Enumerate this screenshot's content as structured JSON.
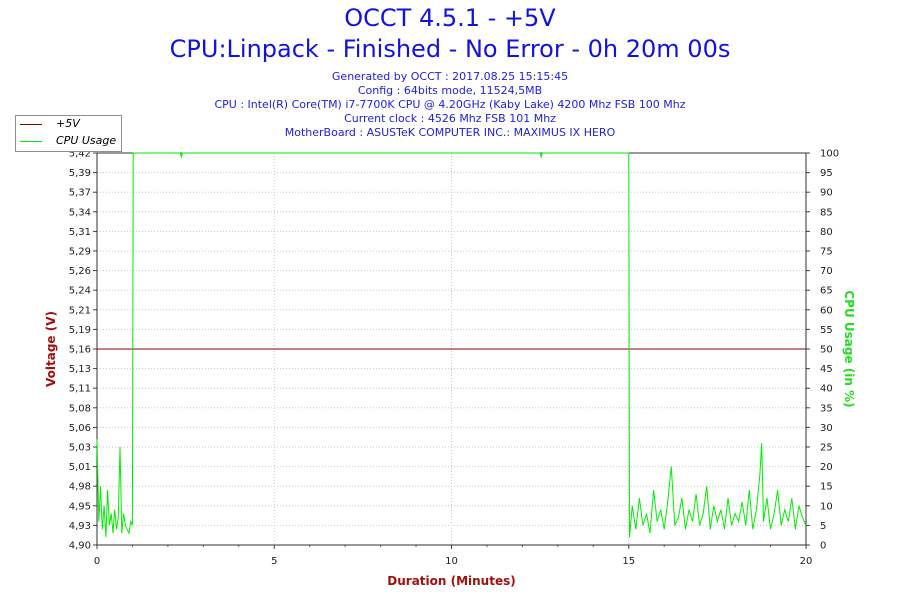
{
  "header": {
    "title": "OCCT 4.5.1 - +5V",
    "subtitle": "CPU:Linpack - Finished - No Error - 0h 20m 00s",
    "info_lines": [
      "Generated by OCCT : 2017.08.25 15:15:45",
      "Config : 64bits mode, 11524,5MB",
      "CPU : Intel(R) Core(TM) i7-7700K CPU @ 4.20GHz (Kaby Lake) 4200 Mhz FSB 100 Mhz",
      "Current clock : 4526 Mhz FSB 101 Mhz",
      "MotherBoard : ASUSTeK COMPUTER INC.: MAXIMUS IX HERO"
    ]
  },
  "legend": {
    "items": [
      {
        "label": "+5V",
        "color": "#800000"
      },
      {
        "label": "CPU Usage",
        "color": "#00ee00"
      }
    ]
  },
  "colors": {
    "voltage": "#800000",
    "cpu": "#00ee00",
    "title": "#1212e0",
    "voltage_axis_label": "#a01010",
    "cpu_axis_label": "#22dd22",
    "x_axis_label": "#a01010",
    "grid": "#c8c8c8"
  },
  "chart_data": {
    "type": "line",
    "xlabel": "Duration (Minutes)",
    "ylabel_left": "Voltage (V)",
    "ylabel_right": "CPU Usage (in %)",
    "xlim": [
      0,
      20
    ],
    "x_ticks": [
      0,
      5,
      10,
      15,
      20
    ],
    "ylim_left": [
      4.9,
      5.42
    ],
    "y_ticks_left": [
      "4,90",
      "4,93",
      "4,95",
      "4,98",
      "5,01",
      "5,03",
      "5,06",
      "5,08",
      "5,11",
      "5,13",
      "5,16",
      "5,19",
      "5,21",
      "5,24",
      "5,26",
      "5,29",
      "5,31",
      "5,34",
      "5,37",
      "5,39",
      "5,42"
    ],
    "ylim_right": [
      0,
      100
    ],
    "y_ticks_right": [
      0,
      5,
      10,
      15,
      20,
      25,
      30,
      35,
      40,
      45,
      50,
      55,
      60,
      65,
      70,
      75,
      80,
      85,
      90,
      95,
      100
    ],
    "grid": true,
    "legend_position": "top-left",
    "series": [
      {
        "name": "+5V",
        "axis": "left",
        "x": [
          0,
          20
        ],
        "values": [
          5.16,
          5.16
        ]
      },
      {
        "name": "CPU Usage",
        "axis": "right",
        "x": [
          0,
          0.05,
          0.1,
          0.15,
          0.2,
          0.25,
          0.3,
          0.35,
          0.4,
          0.45,
          0.5,
          0.55,
          0.6,
          0.65,
          0.7,
          0.75,
          0.8,
          0.85,
          0.9,
          0.95,
          1.0,
          1.02,
          1.1,
          2.35,
          2.38,
          2.41,
          12.5,
          12.53,
          12.56,
          14.97,
          15.0,
          15.02,
          15.1,
          15.2,
          15.3,
          15.4,
          15.5,
          15.6,
          15.7,
          15.8,
          15.9,
          16.0,
          16.1,
          16.2,
          16.3,
          16.4,
          16.5,
          16.6,
          16.7,
          16.8,
          16.9,
          17.0,
          17.1,
          17.2,
          17.3,
          17.4,
          17.5,
          17.6,
          17.7,
          17.8,
          17.9,
          18.0,
          18.1,
          18.2,
          18.3,
          18.4,
          18.5,
          18.6,
          18.7,
          18.75,
          18.8,
          18.9,
          19.0,
          19.1,
          19.2,
          19.3,
          19.4,
          19.5,
          19.6,
          19.7,
          19.8,
          19.9,
          20.0
        ],
        "values": [
          27,
          6,
          15,
          4,
          10,
          2,
          14,
          5,
          8,
          3,
          9,
          4,
          7,
          25,
          3,
          8,
          5,
          4,
          3,
          6,
          5,
          100,
          100,
          100,
          99,
          100,
          100,
          99,
          100,
          100,
          100,
          2,
          10,
          4,
          12,
          5,
          8,
          3,
          14,
          6,
          9,
          4,
          11,
          20,
          5,
          7,
          12,
          4,
          9,
          6,
          13,
          5,
          8,
          15,
          4,
          10,
          6,
          9,
          4,
          12,
          5,
          8,
          6,
          11,
          5,
          14,
          4,
          9,
          18,
          26,
          6,
          12,
          4,
          8,
          14,
          5,
          9,
          6,
          12,
          4,
          10,
          7,
          5
        ]
      }
    ]
  }
}
